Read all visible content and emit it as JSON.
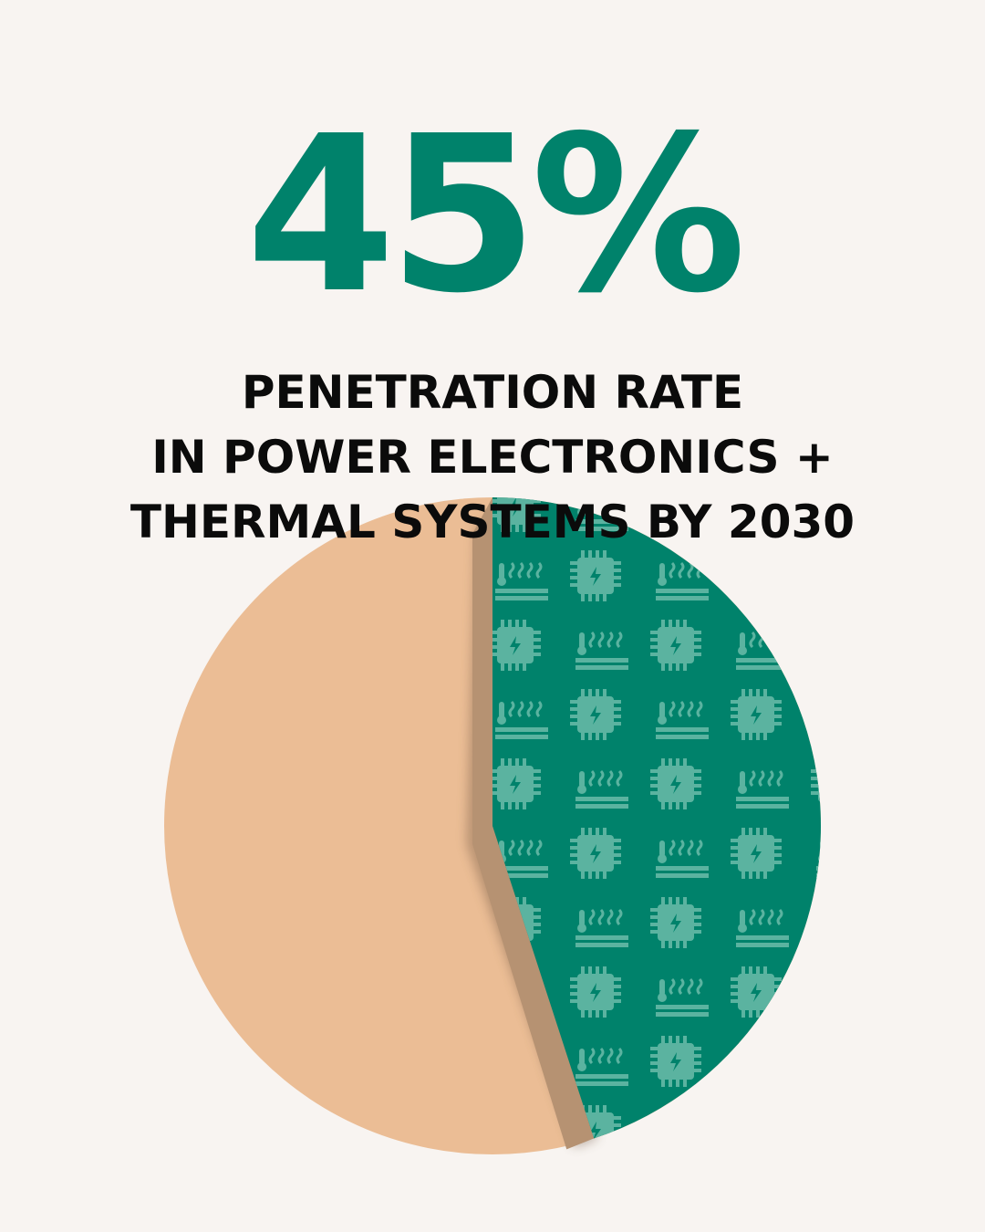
{
  "headline": "45%",
  "caption_lines": [
    "PENETRATION RATE",
    "IN POWER ELECTRONICS +",
    "THERMAL SYSTEMS BY 2030"
  ],
  "colors": {
    "background": "#F8F4F1",
    "accent": "#00826B",
    "remainder": "#EBBD95",
    "pattern_icon": "#5BB3A0",
    "shadow": "#B69272",
    "text": "#0B0B0B"
  },
  "icons": [
    "chip-lightning-icon",
    "thermometer-heat-icon"
  ],
  "chart_data": {
    "type": "pie",
    "slices": [
      {
        "value": 45,
        "color": "#00826B",
        "pattern": "chip-and-heat-icons"
      },
      {
        "value": 55,
        "color": "#EBBD95"
      }
    ],
    "title": "45%",
    "legend": "none"
  }
}
